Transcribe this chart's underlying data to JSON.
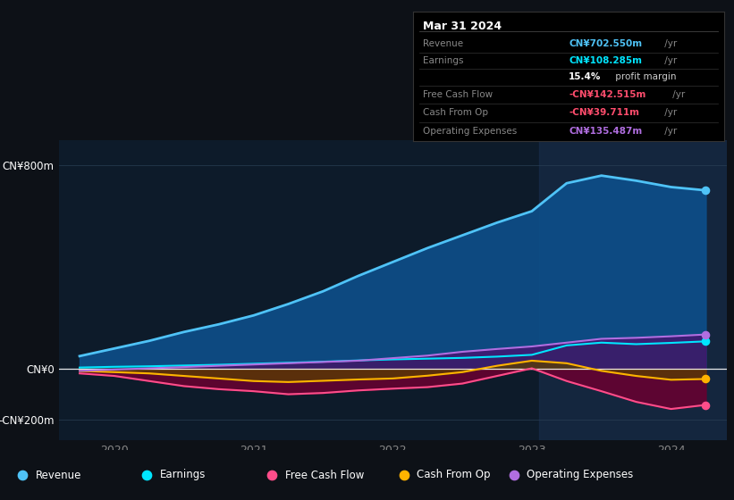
{
  "bg_color": "#0d1117",
  "plot_bg_color": "#0d1b2a",
  "x_years": [
    2019.75,
    2020.0,
    2020.25,
    2020.5,
    2020.75,
    2021.0,
    2021.25,
    2021.5,
    2021.75,
    2022.0,
    2022.25,
    2022.5,
    2022.75,
    2023.0,
    2023.25,
    2023.5,
    2023.75,
    2024.0,
    2024.25
  ],
  "revenue": [
    50,
    80,
    110,
    145,
    175,
    210,
    255,
    305,
    365,
    420,
    475,
    525,
    575,
    620,
    730,
    760,
    740,
    715,
    702
  ],
  "earnings": [
    5,
    8,
    10,
    13,
    16,
    20,
    24,
    28,
    33,
    37,
    40,
    43,
    48,
    55,
    92,
    103,
    97,
    102,
    108
  ],
  "free_cash": [
    -18,
    -28,
    -48,
    -68,
    -80,
    -88,
    -100,
    -95,
    -85,
    -78,
    -72,
    -58,
    -28,
    2,
    -48,
    -88,
    -130,
    -158,
    -142
  ],
  "cash_from_op": [
    -8,
    -13,
    -18,
    -28,
    -38,
    -48,
    -52,
    -47,
    -42,
    -38,
    -27,
    -13,
    12,
    32,
    22,
    -8,
    -28,
    -43,
    -40
  ],
  "op_expenses": [
    -8,
    -3,
    2,
    7,
    12,
    17,
    22,
    27,
    32,
    42,
    52,
    67,
    78,
    88,
    103,
    118,
    122,
    128,
    135
  ],
  "revenue_color": "#4fc3f7",
  "revenue_fill": "#0d4f8a",
  "earnings_color": "#00e5ff",
  "earnings_fill": "#004d55",
  "free_cash_color": "#ff4d8a",
  "free_cash_fill": "#6b0030",
  "cash_from_op_color": "#ffb300",
  "cash_from_op_fill": "#5a3e00",
  "op_expenses_color": "#b06ee0",
  "op_expenses_fill": "#4a1070",
  "highlight_start": 2023.05,
  "highlight_end": 2024.4,
  "ylim_min": -280,
  "ylim_max": 900,
  "yticks": [
    -200,
    0,
    800
  ],
  "ytick_labels": [
    "-CN¥200m",
    "CN¥0",
    "CN¥800m"
  ],
  "xtick_positions": [
    2020,
    2021,
    2022,
    2023,
    2024
  ],
  "xtick_labels": [
    "2020",
    "2021",
    "2022",
    "2023",
    "2024"
  ],
  "xlim_left": 2019.6,
  "xlim_right": 2024.4,
  "info_title": "Mar 31 2024",
  "info_rows": [
    {
      "label": "Revenue",
      "value": "CN¥702.550m /yr",
      "value_color": "#4fc3f7"
    },
    {
      "label": "Earnings",
      "value": "CN¥108.285m /yr",
      "value_color": "#00e5ff"
    },
    {
      "label": "",
      "value": "15.4% profit margin",
      "value_color": "#cccccc"
    },
    {
      "label": "Free Cash Flow",
      "value": "-CN¥142.515m /yr",
      "value_color": "#ff4d6d"
    },
    {
      "label": "Cash From Op",
      "value": "-CN¥39.711m /yr",
      "value_color": "#ff4d6d"
    },
    {
      "label": "Operating Expenses",
      "value": "CN¥135.487m /yr",
      "value_color": "#b06ee0"
    }
  ],
  "legend_items": [
    "Revenue",
    "Earnings",
    "Free Cash Flow",
    "Cash From Op",
    "Operating Expenses"
  ],
  "legend_colors": [
    "#4fc3f7",
    "#00e5ff",
    "#ff4d8a",
    "#ffb300",
    "#b06ee0"
  ]
}
